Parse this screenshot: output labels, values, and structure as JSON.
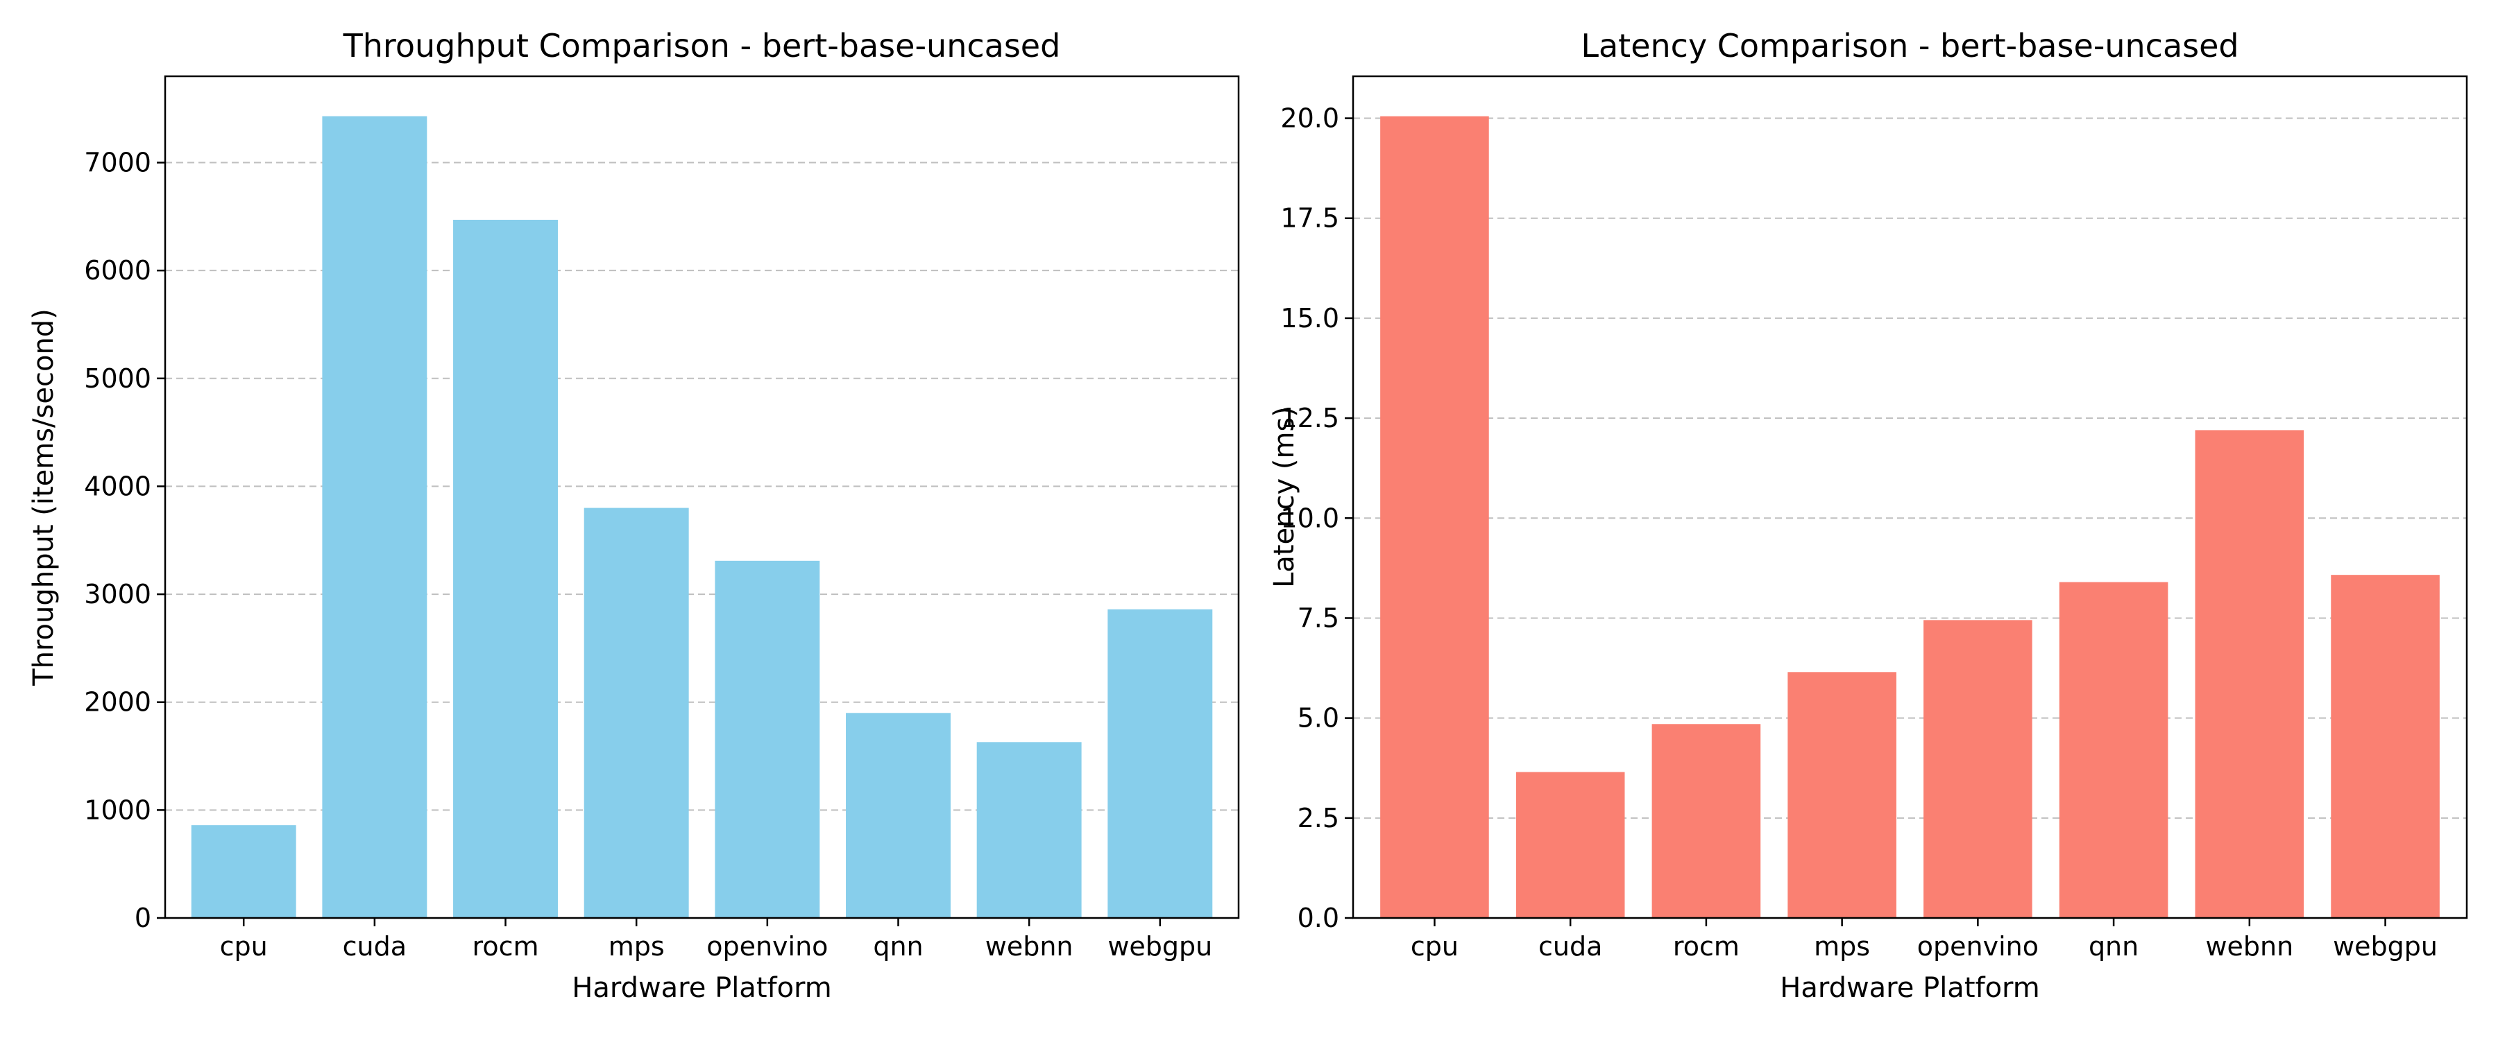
{
  "figure": {
    "background": "#ffffff",
    "grid_color": "#bfbfbf"
  },
  "chart_data": [
    {
      "type": "bar",
      "title": "Throughput Comparison - bert-base-uncased",
      "xlabel": "Hardware Platform",
      "ylabel": "Throughput (items/second)",
      "categories": [
        "cpu",
        "cuda",
        "rocm",
        "mps",
        "openvino",
        "qnn",
        "webnn",
        "webgpu"
      ],
      "values": [
        860,
        7430,
        6470,
        3800,
        3310,
        1900,
        1630,
        2860
      ],
      "ylim": [
        0,
        7800
      ],
      "yticks": [
        0,
        1000,
        2000,
        3000,
        4000,
        5000,
        6000,
        7000
      ],
      "ytick_labels": [
        "0",
        "1000",
        "2000",
        "3000",
        "4000",
        "5000",
        "6000",
        "7000"
      ],
      "bar_color": "#87ceeb",
      "grid": "y, dashed"
    },
    {
      "type": "bar",
      "title": "Latency Comparison - bert-base-uncased",
      "xlabel": "Hardware Platform",
      "ylabel": "Latency (ms)",
      "categories": [
        "cpu",
        "cuda",
        "rocm",
        "mps",
        "openvino",
        "qnn",
        "webnn",
        "webgpu"
      ],
      "values": [
        20.05,
        3.65,
        4.85,
        6.15,
        7.45,
        8.4,
        12.2,
        8.58
      ],
      "ylim": [
        0,
        21.05
      ],
      "yticks": [
        0,
        2.5,
        5,
        7.5,
        10,
        12.5,
        15,
        17.5,
        20
      ],
      "ytick_labels": [
        "0.0",
        "2.5",
        "5.0",
        "7.5",
        "10.0",
        "12.5",
        "15.0",
        "17.5",
        "20.0"
      ],
      "bar_color": "#fa8072",
      "grid": "y, dashed"
    }
  ]
}
